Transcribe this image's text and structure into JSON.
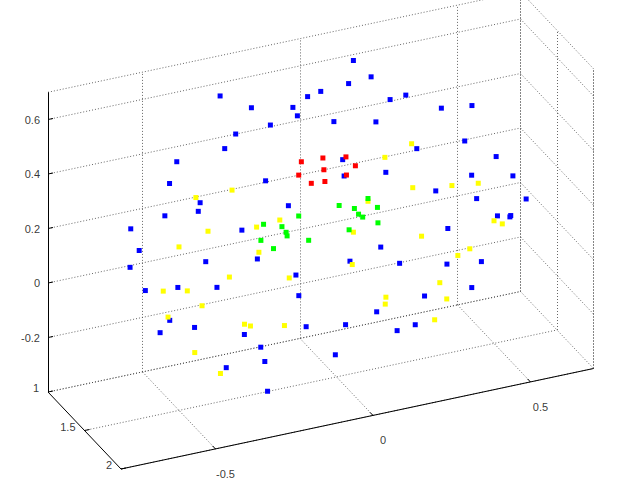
{
  "chart_data": {
    "type": "scatter",
    "grid": true,
    "marker": ".",
    "xlim": [
      1,
      2
    ],
    "xticks": [
      1,
      1.5,
      2
    ],
    "ylim": [
      -0.8,
      0.7
    ],
    "yticks": [
      -0.5,
      0,
      0.5
    ],
    "zlim": [
      -0.4,
      0.7
    ],
    "zticks": [
      -0.2,
      0,
      0.2,
      0.4,
      0.6
    ],
    "series": [
      {
        "color": "#0000ff",
        "values": [
          [
            1.9,
            -0.05,
            0.15
          ],
          [
            1.86,
            0.27,
            0.18
          ],
          [
            1.72,
            0.46,
            0.14
          ],
          [
            1.5,
            0.56,
            0.2
          ],
          [
            1.28,
            0.48,
            0.16
          ],
          [
            1.14,
            0.24,
            0.19
          ],
          [
            1.1,
            -0.06,
            0.13
          ],
          [
            1.16,
            -0.36,
            0.2
          ],
          [
            1.3,
            -0.58,
            0.15
          ],
          [
            1.52,
            -0.66,
            0.17
          ],
          [
            1.7,
            -0.55,
            0.12
          ],
          [
            1.84,
            -0.33,
            0.21
          ],
          [
            1.89,
            0.11,
            0.1
          ],
          [
            1.78,
            0.38,
            0.24
          ],
          [
            1.6,
            0.53,
            0.09
          ],
          [
            1.4,
            0.53,
            0.25
          ],
          [
            1.22,
            0.38,
            0.11
          ],
          [
            1.11,
            0.11,
            0.26
          ],
          [
            1.11,
            -0.21,
            0.08
          ],
          [
            1.22,
            -0.48,
            0.23
          ],
          [
            1.4,
            -0.63,
            0.27
          ],
          [
            1.6,
            -0.63,
            0.1
          ],
          [
            1.78,
            -0.48,
            0.22
          ],
          [
            1.89,
            -0.21,
            0.06
          ],
          [
            1.82,
            -0.05,
            0.44
          ],
          [
            1.78,
            0.19,
            0.47
          ],
          [
            1.66,
            0.37,
            0.42
          ],
          [
            1.5,
            0.43,
            0.49
          ],
          [
            1.34,
            0.37,
            0.45
          ],
          [
            1.22,
            0.19,
            0.41
          ],
          [
            1.18,
            -0.05,
            0.48
          ],
          [
            1.22,
            -0.29,
            0.43
          ],
          [
            1.34,
            -0.47,
            0.46
          ],
          [
            1.5,
            -0.53,
            0.44
          ],
          [
            1.66,
            -0.47,
            0.4
          ],
          [
            1.78,
            -0.29,
            0.47
          ],
          [
            1.68,
            -0.05,
            0.6
          ],
          [
            1.63,
            0.14,
            0.62
          ],
          [
            1.5,
            0.22,
            0.58
          ],
          [
            1.37,
            0.14,
            0.63
          ],
          [
            1.32,
            -0.05,
            0.59
          ],
          [
            1.37,
            -0.24,
            0.61
          ],
          [
            1.5,
            -0.32,
            0.57
          ],
          [
            1.63,
            -0.24,
            0.62
          ],
          [
            1.5,
            -0.05,
            0.66
          ],
          [
            1.45,
            0.05,
            0.65
          ],
          [
            1.55,
            -0.15,
            0.64
          ],
          [
            1.84,
            -0.05,
            -0.1
          ],
          [
            1.8,
            0.21,
            -0.07
          ],
          [
            1.67,
            0.39,
            -0.12
          ],
          [
            1.5,
            0.46,
            -0.09
          ],
          [
            1.33,
            0.39,
            -0.13
          ],
          [
            1.2,
            0.21,
            -0.06
          ],
          [
            1.16,
            -0.05,
            -0.11
          ],
          [
            1.2,
            -0.31,
            -0.08
          ],
          [
            1.33,
            -0.49,
            -0.12
          ],
          [
            1.5,
            -0.56,
            -0.1
          ],
          [
            1.67,
            -0.49,
            -0.05
          ],
          [
            1.8,
            -0.31,
            -0.13
          ],
          [
            1.7,
            -0.05,
            -0.25
          ],
          [
            1.64,
            0.16,
            -0.23
          ],
          [
            1.5,
            0.25,
            -0.27
          ],
          [
            1.36,
            0.16,
            -0.24
          ],
          [
            1.3,
            -0.05,
            -0.26
          ],
          [
            1.36,
            -0.26,
            -0.22
          ],
          [
            1.5,
            -0.35,
            -0.28
          ],
          [
            1.64,
            -0.26,
            -0.24
          ],
          [
            1.2,
            0.62,
            -0.05
          ],
          [
            1.25,
            0.66,
            0.02
          ],
          [
            1.3,
            0.1,
            0.68
          ],
          [
            1.2,
            -0.3,
            0.62
          ],
          [
            1.85,
            -0.3,
            -0.28
          ]
        ]
      },
      {
        "color": "#ffff00",
        "values": [
          [
            1.5,
            -0.34,
            0.05
          ],
          [
            1.3,
            -0.4,
            0.3
          ],
          [
            1.7,
            -0.3,
            0.28
          ],
          [
            1.5,
            -0.5,
            0.2
          ],
          [
            1.5,
            -0.18,
            0.22
          ],
          [
            1.35,
            -0.5,
            -0.1
          ],
          [
            1.65,
            -0.2,
            -0.12
          ],
          [
            1.5,
            -0.45,
            -0.2
          ],
          [
            1.4,
            -0.25,
            -0.18
          ],
          [
            1.6,
            -0.45,
            0.0
          ],
          [
            1.3,
            -0.2,
            0.05
          ],
          [
            1.7,
            -0.52,
            0.1
          ],
          [
            1.45,
            -0.32,
            0.35
          ],
          [
            1.55,
            -0.38,
            -0.28
          ],
          [
            1.25,
            -0.35,
            0.15
          ],
          [
            1.75,
            -0.35,
            -0.05
          ],
          [
            1.5,
            -0.15,
            0.0
          ],
          [
            1.5,
            -0.55,
            0.05
          ],
          [
            1.5,
            0.27,
            0.05
          ],
          [
            1.3,
            0.2,
            0.3
          ],
          [
            1.7,
            0.32,
            0.28
          ],
          [
            1.5,
            0.45,
            0.2
          ],
          [
            1.5,
            0.1,
            0.22
          ],
          [
            1.35,
            0.42,
            -0.1
          ],
          [
            1.65,
            0.12,
            -0.12
          ],
          [
            1.5,
            0.35,
            -0.2
          ],
          [
            1.4,
            0.18,
            -0.18
          ],
          [
            1.6,
            0.4,
            0.0
          ],
          [
            1.3,
            0.1,
            0.05
          ],
          [
            1.7,
            0.48,
            0.1
          ],
          [
            1.45,
            0.25,
            0.38
          ],
          [
            1.55,
            0.3,
            -0.25
          ],
          [
            1.25,
            0.3,
            0.15
          ],
          [
            1.75,
            0.27,
            -0.05
          ],
          [
            1.5,
            0.05,
            0.0
          ],
          [
            1.5,
            0.5,
            0.05
          ]
        ]
      },
      {
        "color": "#00ff00",
        "values": [
          [
            1.5,
            -0.16,
            0.17
          ],
          [
            1.45,
            -0.22,
            0.2
          ],
          [
            1.55,
            -0.1,
            0.14
          ],
          [
            1.5,
            -0.2,
            0.12
          ],
          [
            1.5,
            -0.12,
            0.22
          ],
          [
            1.4,
            -0.15,
            0.16
          ],
          [
            1.6,
            -0.18,
            0.19
          ],
          [
            1.5,
            -0.24,
            0.16
          ],
          [
            1.5,
            0.07,
            0.18
          ],
          [
            1.45,
            0.02,
            0.21
          ],
          [
            1.55,
            0.12,
            0.15
          ],
          [
            1.5,
            0.1,
            0.23
          ],
          [
            1.5,
            0.04,
            0.13
          ],
          [
            1.4,
            0.08,
            0.17
          ],
          [
            1.6,
            0.06,
            0.2
          ],
          [
            1.5,
            0.13,
            0.19
          ]
        ]
      },
      {
        "color": "#ff0000",
        "values": [
          [
            1.5,
            -0.04,
            0.37
          ],
          [
            1.45,
            -0.1,
            0.4
          ],
          [
            1.55,
            0.02,
            0.35
          ],
          [
            1.5,
            -0.08,
            0.33
          ],
          [
            1.5,
            0.03,
            0.4
          ],
          [
            1.4,
            -0.02,
            0.38
          ],
          [
            1.6,
            -0.06,
            0.36
          ],
          [
            1.5,
            -0.12,
            0.37
          ],
          [
            1.5,
            0.06,
            0.36
          ]
        ]
      }
    ]
  }
}
